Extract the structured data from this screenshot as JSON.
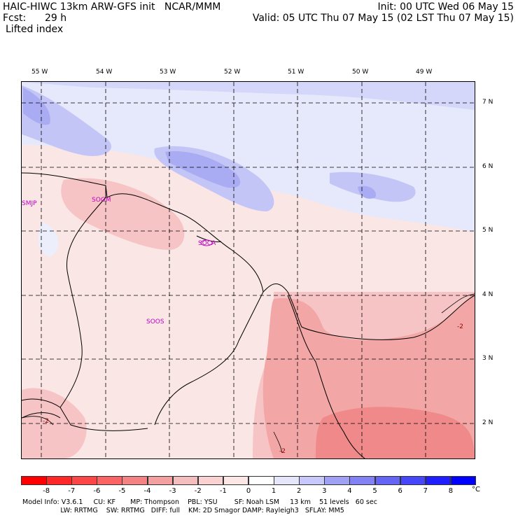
{
  "header": {
    "title": "HAIC-HIWC 13km ARW-GFS init   NCAR/MMM",
    "fcst_label": "Fcst:",
    "fcst_value": "29 h",
    "field": "Lifted index",
    "init": "Init: 00 UTC Wed 06 May 15",
    "valid": "Valid: 05 UTC Thu 07 May 15 (02 LST Thu 07 May 15)"
  },
  "axes": {
    "lon_labels": [
      "55 W",
      "54 W",
      "53 W",
      "52 W",
      "51 W",
      "50 W",
      "49 W"
    ],
    "lat_labels": [
      "7 N",
      "6 N",
      "5 N",
      "4 N",
      "3 N",
      "2 N"
    ]
  },
  "stations": [
    "SMJP",
    "SOGM",
    "SOCA",
    "SOOS"
  ],
  "contour_labels": [
    "-2",
    "-2",
    "-2"
  ],
  "colorbar": {
    "labels": [
      "-8",
      "-7",
      "-6",
      "-5",
      "-4",
      "-3",
      "-2",
      "-1",
      "0",
      "1",
      "2",
      "3",
      "4",
      "5",
      "6",
      "7",
      "8"
    ],
    "unit": "°C",
    "colors": [
      "#ff0000",
      "#ff2828",
      "#ff4646",
      "#fa6464",
      "#f58282",
      "#f5a0a0",
      "#f5bebe",
      "#fad2d2",
      "#fde6e6",
      "#ffffff",
      "#e6e6fa",
      "#c8c8fa",
      "#a0a0f5",
      "#8282f5",
      "#6464f5",
      "#4646fa",
      "#1e1eff",
      "#0000ff"
    ]
  },
  "footer": {
    "line1": "Model Info: V3.6.1     CU: KF       MP: Thompson    PBL: YSU        SF: Noah LSM     13 km    51 levels   60 sec",
    "line2": "                  LW: RRTMG    SW: RRTMG   DIFF: full    KM: 2D Smagor DAMP: Rayleigh3   SFLAY: MM5"
  }
}
